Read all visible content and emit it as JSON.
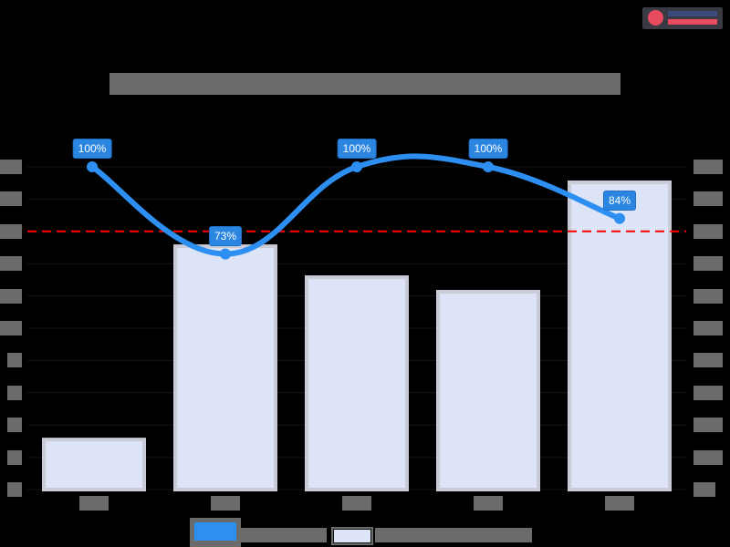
{
  "header": {
    "title": "[redacted chart title]",
    "logo": {
      "icon": "red-planet-globe",
      "line1": "[redacted]",
      "line2": "EXPLORER",
      "colors": {
        "globe": "#e84a5f",
        "line1": "#3b4a7a",
        "line2": "#e84a5f"
      }
    }
  },
  "colors": {
    "background": "#000000",
    "line": "#2d8ff2",
    "bar_fill": "#dde4f7",
    "bar_border": "#c9ccd6",
    "reference_line": "#ff0000",
    "data_label_bg": "#2b86e2",
    "redaction": "#6b6b6b"
  },
  "chart_data": {
    "type": "bar",
    "title": "[redacted]",
    "xlabel": "",
    "ylabel_left": "[redacted]",
    "ylabel_right": "[redacted]",
    "categories": [
      "[redacted 1]",
      "[redacted 2]",
      "[redacted 3]",
      "[redacted 4]",
      "[redacted 5]"
    ],
    "series": [
      {
        "name": "[redacted line series]",
        "type": "line",
        "axis": "left",
        "smooth": true,
        "values": [
          100,
          73,
          100,
          100,
          84
        ],
        "data_labels": [
          "100%",
          "73%",
          "100%",
          "100%",
          "84%"
        ]
      },
      {
        "name": "[redacted bar series]",
        "type": "bar",
        "axis": "right",
        "values_relative_to_axis_max": [
          0.155,
          0.754,
          0.658,
          0.613,
          0.952
        ]
      }
    ],
    "reference_line": {
      "axis": "left",
      "value": 80,
      "style": "dashed",
      "color": "#ff0000"
    },
    "ylim_left": [
      0,
      100
    ],
    "left_ticks_count": 11,
    "right_ticks_count": 11,
    "grid": true,
    "legend_position": "bottom"
  },
  "legend": {
    "items": [
      {
        "label": "[redacted]",
        "swatch": "line"
      },
      {
        "label": "[redacted]",
        "swatch": "bar"
      }
    ]
  }
}
